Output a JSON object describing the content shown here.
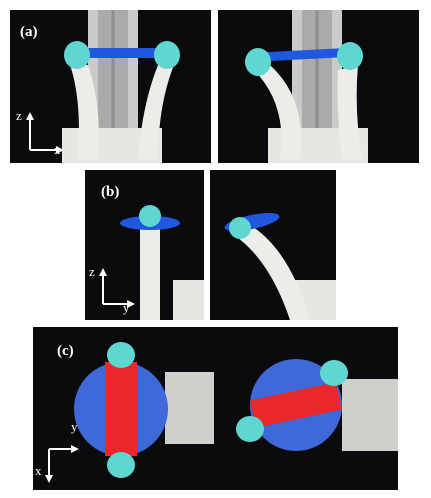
{
  "panels": [
    {
      "id": "a",
      "label": "(a)",
      "axes": {
        "vertical": "z",
        "horizontal": "x"
      }
    },
    {
      "id": "b",
      "label": "(b)",
      "axes": {
        "vertical": "z",
        "horizontal": "y"
      }
    },
    {
      "id": "c",
      "label": "(c)",
      "axes": {
        "vertical": "y",
        "horizontal": "x"
      }
    }
  ],
  "colors": {
    "background": "#0b0b0d",
    "tip_cyan": "#5fd6cf",
    "strap_blue": "#1f57e0",
    "disk_blue": "#3f68d8",
    "stripe_red": "#e8282b",
    "finger_white": "#ecece8"
  }
}
